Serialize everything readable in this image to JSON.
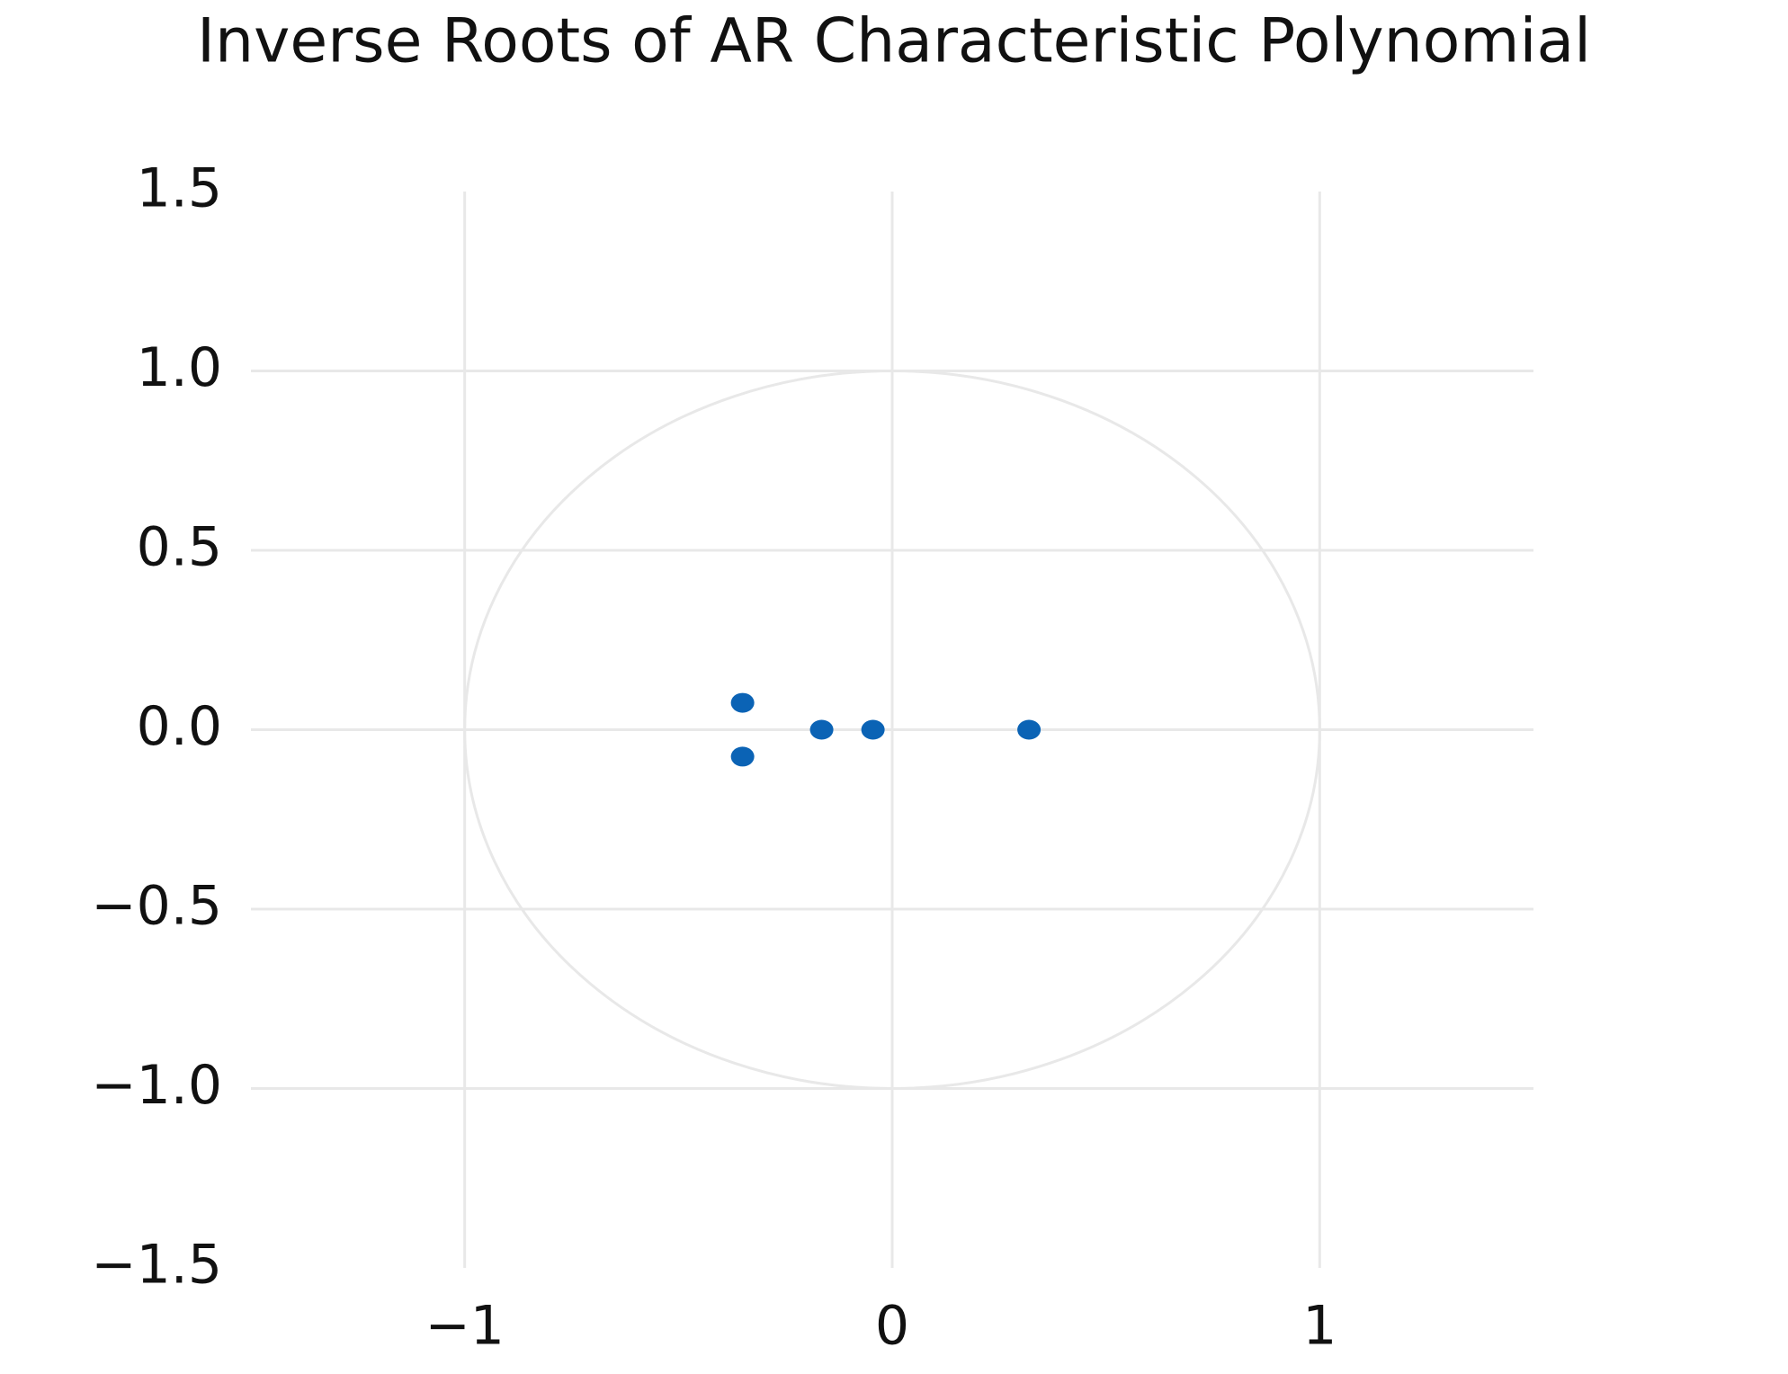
{
  "chart_data": {
    "type": "scatter",
    "title": "Inverse Roots of AR Characteristic Polynomial",
    "x": [
      -0.35,
      -0.35,
      -0.165,
      -0.045,
      0.32
    ],
    "y": [
      0.075,
      -0.075,
      0,
      0,
      0
    ],
    "color": "#0b63b5",
    "xlim": [
      -1.5,
      1.5
    ],
    "ylim": [
      -1.5,
      1.5
    ],
    "xticks": [
      {
        "value": -1,
        "label": "−1"
      },
      0,
      1
    ],
    "yticks": [
      1.5,
      {
        "value": 1,
        "label": "1.0"
      },
      0.5,
      {
        "value": 0,
        "label": "0.0"
      },
      {
        "value": -0.5,
        "label": "−0.5"
      },
      {
        "value": -1,
        "label": "−1.0"
      },
      {
        "value": -1.5,
        "label": "−1.5"
      }
    ],
    "grid": true,
    "unit_circle": true
  }
}
